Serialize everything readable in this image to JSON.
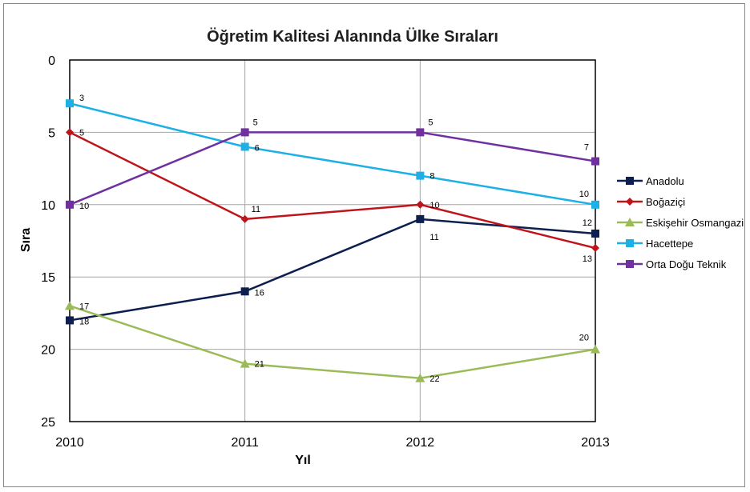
{
  "chart_data": {
    "type": "line",
    "title": "Öğretim Kalitesi Alanında Ülke Sıraları",
    "xlabel": "Yıl",
    "ylabel": "Sıra",
    "x": [
      "2010",
      "2011",
      "2012",
      "2013"
    ],
    "ylim": [
      0,
      25
    ],
    "y_inverted": true,
    "y_ticks": [
      "0",
      "5",
      "10",
      "15",
      "20",
      "25"
    ],
    "grid": true,
    "legend_position": "right",
    "series": [
      {
        "name": "Anadolu",
        "values": [
          18,
          16,
          11,
          12
        ],
        "color": "#0d1f4f",
        "marker": "square"
      },
      {
        "name": "Boğaziçi",
        "values": [
          5,
          11,
          10,
          13
        ],
        "color": "#c0141b",
        "marker": "diamond"
      },
      {
        "name": "Eskişehir Osmangazi",
        "values": [
          17,
          21,
          22,
          20
        ],
        "color": "#9bbb59",
        "marker": "triangle"
      },
      {
        "name": "Hacettepe",
        "values": [
          3,
          6,
          8,
          10
        ],
        "color": "#1cb0e6",
        "marker": "square"
      },
      {
        "name": "Orta Doğu Teknik",
        "values": [
          10,
          5,
          5,
          7
        ],
        "color": "#7030a0",
        "marker": "square"
      }
    ]
  }
}
